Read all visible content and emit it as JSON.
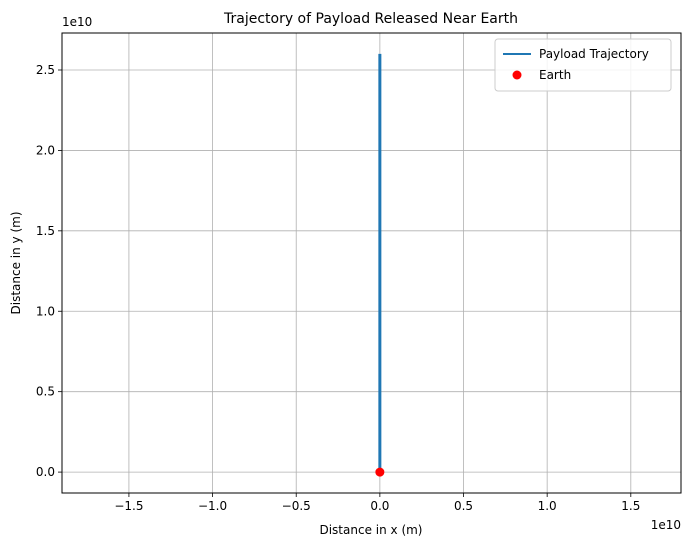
{
  "chart_data": {
    "type": "line",
    "title": "Trajectory of Payload Released Near Earth",
    "xlabel": "Distance in x (m)",
    "ylabel": "Distance in y (m)",
    "x_offset_label": "1e10",
    "y_offset_label": "1e10",
    "xlim": [
      -1.9,
      1.8
    ],
    "ylim": [
      -0.13,
      2.73
    ],
    "x_scale_factor": 10000000000.0,
    "y_scale_factor": 10000000000.0,
    "xticks": [
      -1.5,
      -1.0,
      -0.5,
      0.0,
      0.5,
      1.0,
      1.5
    ],
    "xtick_labels": [
      "−1.5",
      "−1.0",
      "−0.5",
      "0.0",
      "0.5",
      "1.0",
      "1.5"
    ],
    "yticks": [
      0.0,
      0.5,
      1.0,
      1.5,
      2.0,
      2.5
    ],
    "ytick_labels": [
      "0.0",
      "0.5",
      "1.0",
      "1.5",
      "2.0",
      "2.5"
    ],
    "grid": true,
    "legend_position": "top-right",
    "series": [
      {
        "name": "Payload Trajectory",
        "kind": "line",
        "color": "#1f77b4",
        "x": [
          0.0,
          0.0
        ],
        "y": [
          0.0,
          2.6
        ]
      },
      {
        "name": "Earth",
        "kind": "scatter",
        "color": "#ff0000",
        "x": [
          0.0
        ],
        "y": [
          0.0
        ]
      }
    ]
  }
}
